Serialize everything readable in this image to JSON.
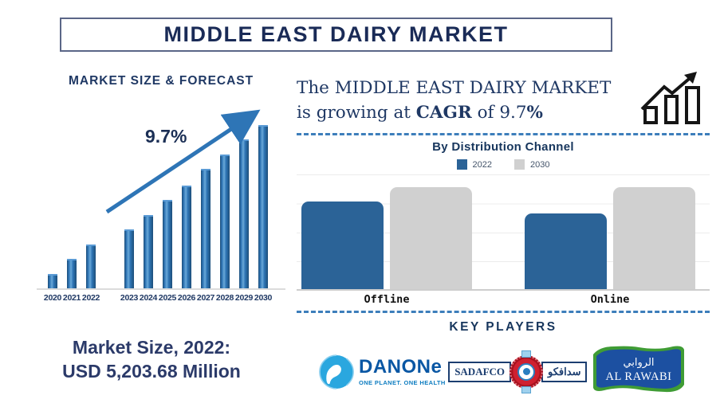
{
  "title": "MIDDLE EAST DAIRY MARKET",
  "left_panel": {
    "heading": "MARKET SIZE & FORECAST",
    "cagr_label": "9.7%",
    "market_size_line1": "Market Size, 2022:",
    "market_size_line2": "USD 5,203.68 Million"
  },
  "right_panel": {
    "cagr_sentence": {
      "line1": "The MIDDLE EAST DAIRY MARKET",
      "line2_pre": "is growing at ",
      "line2_bold": "CAGR",
      "line2_mid": " of 9.7",
      "line2_pct": "%"
    },
    "distribution": {
      "heading": "By Distribution Channel",
      "legend": [
        {
          "label": "2022",
          "color": "#2b6397"
        },
        {
          "label": "2030",
          "color": "#d0d0d0"
        }
      ]
    },
    "key_players": {
      "heading": "KEY PLAYERS",
      "players": [
        {
          "name": "Danone",
          "logo_text": "DANONe",
          "tagline": "ONE PLANET. ONE HEALTH"
        },
        {
          "name": "SADAFCO",
          "logo_text": "SADAFCO",
          "logo_text_ar": "سدافكو"
        },
        {
          "name": "Al Rawabi",
          "logo_text": "AL RAWABI",
          "logo_text_ar": "الروابي"
        }
      ]
    }
  },
  "chart_data": [
    {
      "type": "bar",
      "title": "MARKET SIZE & FORECAST",
      "categories": [
        "2020",
        "2021",
        "2022",
        "2023",
        "2024",
        "2025",
        "2026",
        "2027",
        "2028",
        "2029",
        "2030"
      ],
      "values": [
        9,
        18,
        27,
        36,
        45,
        54,
        63,
        73,
        82,
        91,
        100
      ],
      "xlabel": "",
      "ylabel": "",
      "ylim": [
        0,
        100
      ],
      "grid": false,
      "annotation": "9.7%",
      "bar_color": "#2e75b6"
    },
    {
      "type": "bar",
      "title": "By Distribution Channel",
      "categories": [
        "Offline",
        "Online"
      ],
      "series": [
        {
          "name": "2022",
          "color": "#2b6397",
          "values": [
            3.0,
            2.6
          ]
        },
        {
          "name": "2030",
          "color": "#d0d0d0",
          "values": [
            3.5,
            3.5
          ]
        }
      ],
      "ylim": [
        0,
        4
      ],
      "grid": true,
      "legend_position": "top"
    }
  ],
  "colors": {
    "navy_text": "#1f3864",
    "steel_blue": "#2e75b6",
    "dist_blue": "#2b6397",
    "dist_gray": "#d0d0d0",
    "dashed_line": "#3d7ebb"
  }
}
